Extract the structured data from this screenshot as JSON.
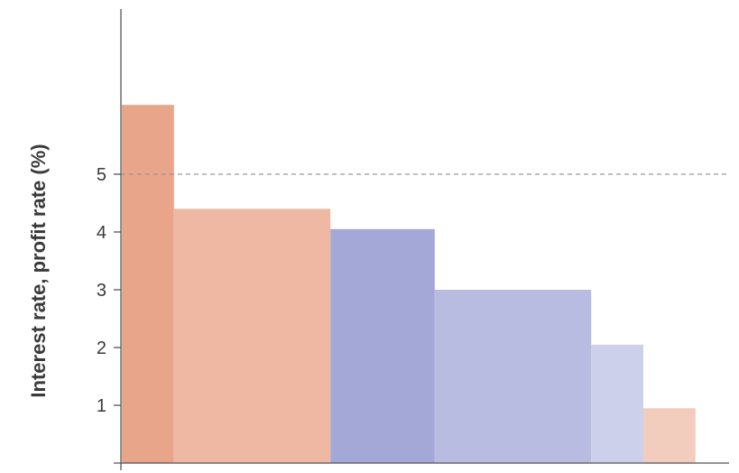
{
  "chart_data": {
    "type": "bar",
    "xlabel": "",
    "ylabel": "Interest rate, profit rate (%)",
    "yticks": [
      1,
      2,
      3,
      4,
      5
    ],
    "reference_line": {
      "y": 5,
      "style": "dashed",
      "color": "#999999"
    },
    "bars": [
      {
        "value": 6.2,
        "width": 1,
        "color": "#e9a58a"
      },
      {
        "value": 4.4,
        "width": 3,
        "color": "#eeb8a2"
      },
      {
        "value": 4.05,
        "width": 2,
        "color": "#a3a8d6"
      },
      {
        "value": 3.0,
        "width": 3,
        "color": "#b8bce0"
      },
      {
        "value": 2.05,
        "width": 1,
        "color": "#ccd0ea"
      },
      {
        "value": 0.95,
        "width": 1,
        "color": "#f2cdbd"
      }
    ],
    "grid": false
  }
}
